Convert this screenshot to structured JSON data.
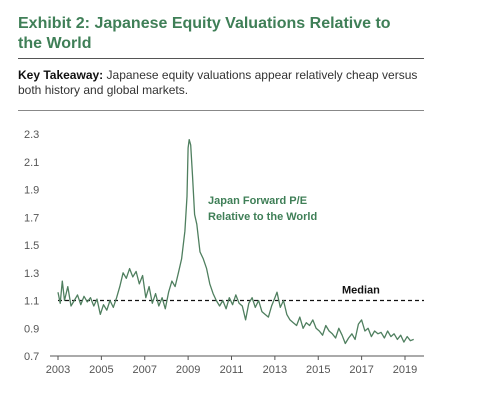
{
  "header": {
    "title_line1": "Exhibit 2: Japanese Equity Valuations Relative to",
    "title_line2": "the World",
    "takeaway_label": "Key Takeaway:",
    "takeaway_text": "Japanese equity valuations appear relatively cheap versus both history and global markets."
  },
  "colors": {
    "accent": "#3f7f57",
    "line": "#4f7f5f",
    "median": "#111111"
  },
  "chart_data": {
    "type": "line",
    "title": "",
    "xlabel": "",
    "ylabel": "",
    "xlim": [
      2003,
      2019.6
    ],
    "ylim": [
      0.7,
      2.3
    ],
    "x_ticks": [
      "2003",
      "2005",
      "2007",
      "2009",
      "2011",
      "2013",
      "2015",
      "2017",
      "2019"
    ],
    "y_ticks": [
      "2.3",
      "2.1",
      "1.9",
      "1.7",
      "1.5",
      "1.3",
      "1.1",
      "0.9",
      "0.7"
    ],
    "median": {
      "value": 1.1,
      "label": "Median"
    },
    "series": [
      {
        "name": "Japan Forward P/E Relative to the World",
        "label_line1": "Japan Forward P/E",
        "label_line2": "Relative to the World",
        "x": [
          2003.0,
          2003.1,
          2003.2,
          2003.3,
          2003.45,
          2003.6,
          2003.75,
          2003.9,
          2004.05,
          2004.2,
          2004.35,
          2004.5,
          2004.65,
          2004.8,
          2004.95,
          2005.1,
          2005.25,
          2005.4,
          2005.55,
          2005.7,
          2005.85,
          2006.0,
          2006.15,
          2006.3,
          2006.45,
          2006.6,
          2006.75,
          2006.9,
          2007.05,
          2007.2,
          2007.35,
          2007.5,
          2007.65,
          2007.8,
          2007.95,
          2008.1,
          2008.25,
          2008.4,
          2008.55,
          2008.7,
          2008.85,
          2008.95,
          2009.0,
          2009.05,
          2009.12,
          2009.2,
          2009.3,
          2009.4,
          2009.55,
          2009.7,
          2009.85,
          2010.0,
          2010.15,
          2010.3,
          2010.45,
          2010.6,
          2010.75,
          2010.9,
          2011.05,
          2011.2,
          2011.35,
          2011.5,
          2011.65,
          2011.8,
          2011.95,
          2012.1,
          2012.25,
          2012.4,
          2012.55,
          2012.7,
          2012.85,
          2013.0,
          2013.1,
          2013.25,
          2013.4,
          2013.55,
          2013.7,
          2013.85,
          2014.0,
          2014.15,
          2014.3,
          2014.45,
          2014.6,
          2014.75,
          2014.9,
          2015.05,
          2015.2,
          2015.35,
          2015.5,
          2015.65,
          2015.8,
          2015.95,
          2016.1,
          2016.25,
          2016.4,
          2016.55,
          2016.7,
          2016.85,
          2017.0,
          2017.15,
          2017.3,
          2017.45,
          2017.6,
          2017.75,
          2017.9,
          2018.05,
          2018.2,
          2018.35,
          2018.5,
          2018.65,
          2018.8,
          2018.95,
          2019.1,
          2019.25,
          2019.4
        ],
        "values": [
          1.16,
          1.08,
          1.24,
          1.1,
          1.2,
          1.06,
          1.1,
          1.14,
          1.07,
          1.13,
          1.09,
          1.12,
          1.06,
          1.11,
          1.0,
          1.07,
          1.03,
          1.1,
          1.05,
          1.12,
          1.2,
          1.3,
          1.26,
          1.33,
          1.27,
          1.31,
          1.22,
          1.28,
          1.12,
          1.2,
          1.08,
          1.15,
          1.06,
          1.12,
          1.04,
          1.16,
          1.24,
          1.2,
          1.3,
          1.4,
          1.6,
          1.85,
          2.2,
          2.26,
          2.22,
          2.0,
          1.72,
          1.65,
          1.45,
          1.4,
          1.33,
          1.22,
          1.15,
          1.1,
          1.06,
          1.1,
          1.04,
          1.12,
          1.07,
          1.14,
          1.08,
          1.06,
          0.96,
          1.08,
          1.12,
          1.05,
          1.1,
          1.02,
          1.0,
          0.98,
          1.06,
          1.12,
          1.16,
          1.05,
          1.1,
          1.0,
          0.96,
          0.94,
          0.92,
          0.98,
          0.9,
          0.94,
          0.92,
          0.96,
          0.9,
          0.88,
          0.85,
          0.92,
          0.88,
          0.86,
          0.83,
          0.9,
          0.85,
          0.79,
          0.83,
          0.86,
          0.82,
          0.93,
          0.96,
          0.88,
          0.9,
          0.84,
          0.88,
          0.86,
          0.87,
          0.83,
          0.88,
          0.84,
          0.86,
          0.82,
          0.85,
          0.8,
          0.84,
          0.81,
          0.82
        ]
      }
    ]
  }
}
